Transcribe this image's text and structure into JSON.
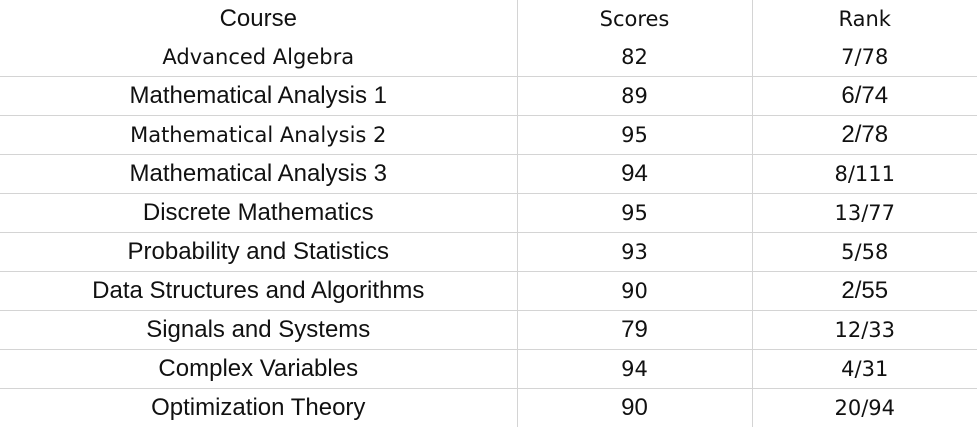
{
  "table": {
    "headers": {
      "course": "Course",
      "scores": "Scores",
      "rank": "Rank"
    },
    "rows": [
      {
        "course": "Advanced Algebra",
        "score": "82",
        "rank": "7/78",
        "course_style": "light",
        "score_style": "light",
        "rank_style": "light"
      },
      {
        "course": "Mathematical Analysis  1",
        "score": "89",
        "rank": "6/74",
        "course_style": "bold",
        "score_style": "light",
        "rank_style": "bold"
      },
      {
        "course": "Mathematical Analysis  2",
        "score": "95",
        "rank": "2/78",
        "course_style": "light",
        "score_style": "light",
        "rank_style": "bold"
      },
      {
        "course": "Mathematical Analysis  3",
        "score": "94",
        "rank": "8/111",
        "course_style": "bold",
        "score_style": "bold",
        "rank_style": "light"
      },
      {
        "course": "Discrete Mathematics",
        "score": "95",
        "rank": "13/77",
        "course_style": "bold",
        "score_style": "light",
        "rank_style": "light"
      },
      {
        "course": "Probability and Statistics",
        "score": "93",
        "rank": "5/58",
        "course_style": "bold",
        "score_style": "light",
        "rank_style": "light"
      },
      {
        "course": "Data Structures and Algorithms",
        "score": "90",
        "rank": "2/55",
        "course_style": "bold",
        "score_style": "light",
        "rank_style": "bold"
      },
      {
        "course": "Signals and Systems",
        "score": "79",
        "rank": "12/33",
        "course_style": "bold",
        "score_style": "bold",
        "rank_style": "light"
      },
      {
        "course": "Complex Variables",
        "score": "94",
        "rank": "4/31",
        "course_style": "bold",
        "score_style": "light",
        "rank_style": "light"
      },
      {
        "course": "Optimization Theory",
        "score": "90",
        "rank": "20/94",
        "course_style": "bold",
        "score_style": "bold",
        "rank_style": "light"
      }
    ]
  }
}
